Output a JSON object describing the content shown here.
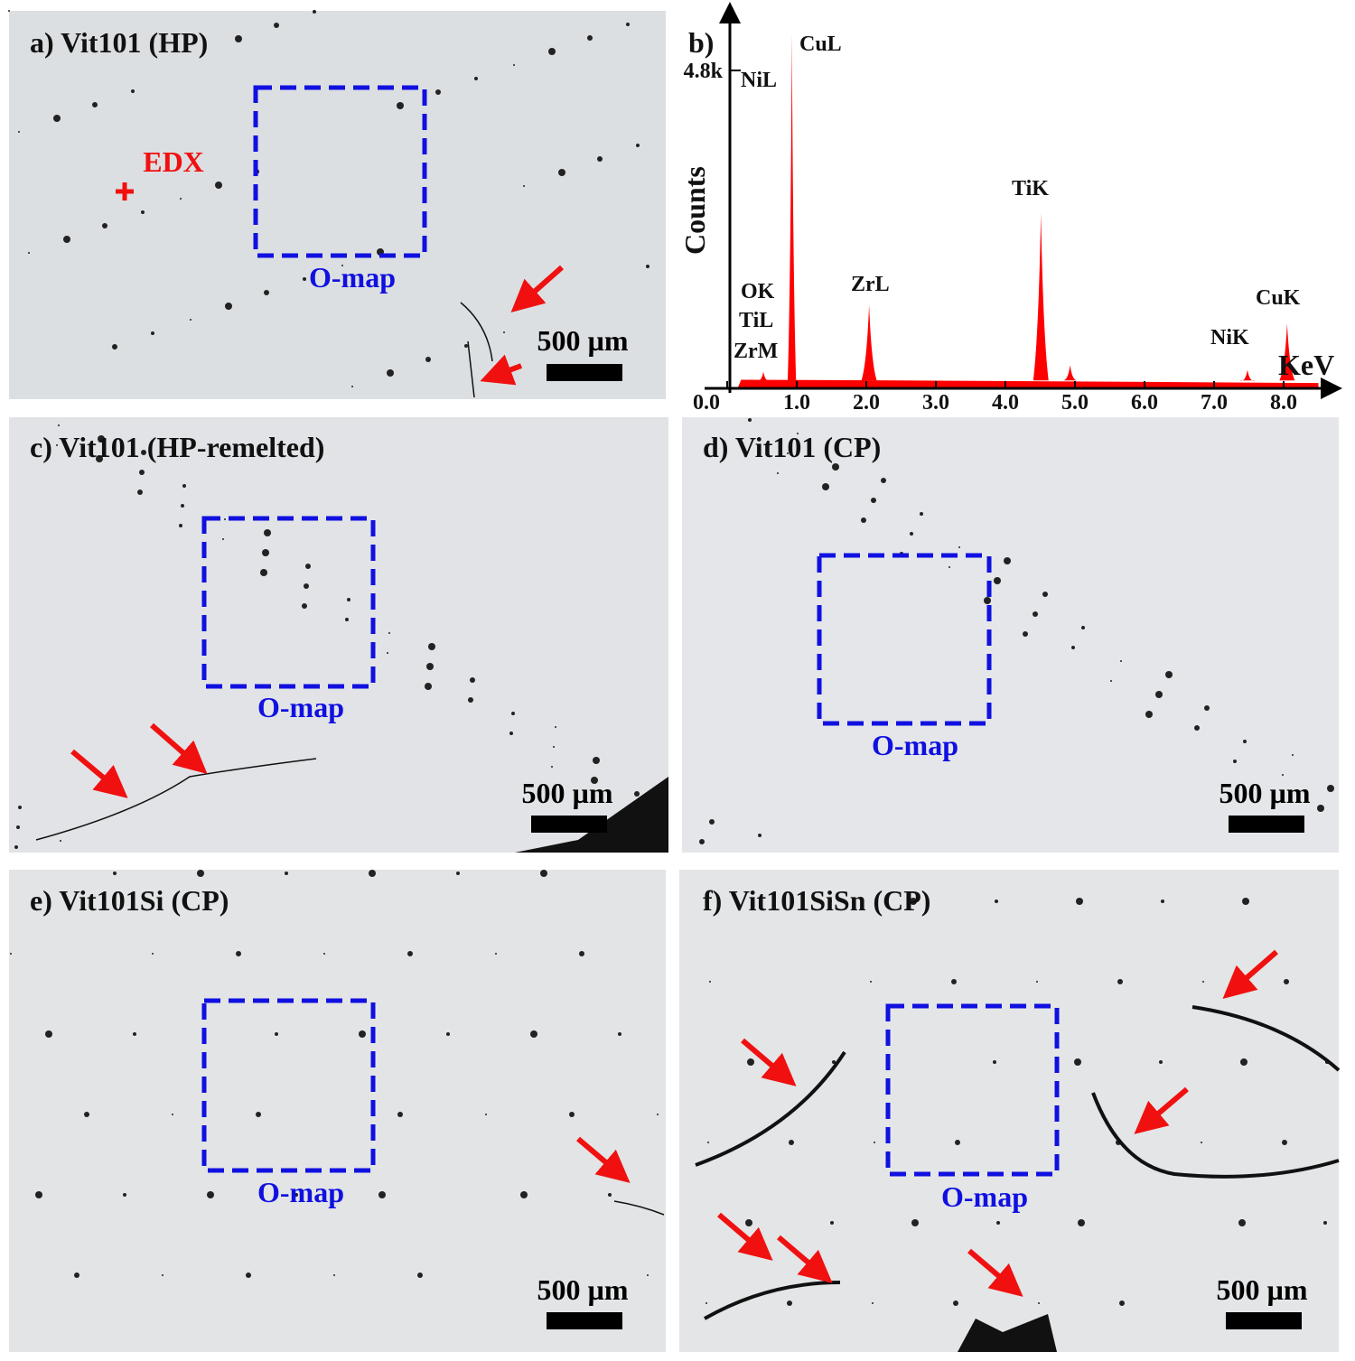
{
  "panels": [
    {
      "title": "a) Vit101 (HP)",
      "box_label": "O-map",
      "scale_bar": "500 µm",
      "marker": "EDX"
    },
    {
      "title": "c) Vit101 (HP-remelted)",
      "box_label": "O-map",
      "scale_bar": "500 µm"
    },
    {
      "title": "d) Vit101 (CP)",
      "box_label": "O-map",
      "scale_bar": "500 µm"
    },
    {
      "title": "e) Vit101Si (CP)",
      "box_label": "O-map",
      "scale_bar": "500 µm"
    },
    {
      "title": "f) Vit101SiSn (CP)",
      "box_label": "O-map",
      "scale_bar": "500 µm"
    }
  ],
  "chart_data": {
    "type": "spectrum",
    "title": "b)",
    "y_label": "Counts",
    "x_label": "KeV",
    "color": "#ff0000",
    "xlim": [
      0,
      8.8
    ],
    "ylim": [
      0,
      5800
    ],
    "xticks": [
      {
        "value": 0,
        "label": "0.0"
      },
      {
        "value": 1,
        "label": "1.0"
      },
      {
        "value": 2,
        "label": "2.0"
      },
      {
        "value": 3,
        "label": "3.0"
      },
      {
        "value": 4,
        "label": "4.0"
      },
      {
        "value": 5,
        "label": "5.0"
      },
      {
        "value": 6,
        "label": "6.0"
      },
      {
        "value": 7,
        "label": "7.0"
      },
      {
        "value": 8,
        "label": "8.0"
      }
    ],
    "yticks": [
      {
        "value": 4800,
        "label": "4.8k"
      }
    ],
    "x": [
      0.52,
      0.93,
      2.04,
      4.51,
      4.93,
      7.48,
      8.05
    ],
    "values": [
      250,
      5360,
      1260,
      2640,
      350,
      280,
      980
    ],
    "annotations": [
      "CuL",
      "NiL",
      "OK",
      "TiL",
      "ZrM",
      "ZrL",
      "TiK",
      "NiK",
      "CuK"
    ]
  }
}
